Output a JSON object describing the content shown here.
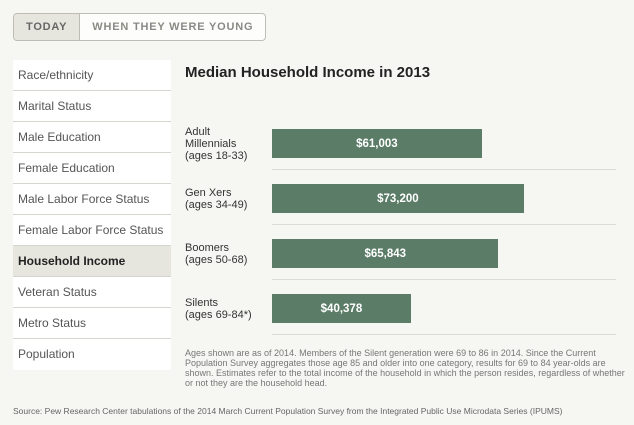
{
  "tabs": [
    {
      "label": "TODAY"
    },
    {
      "label": "WHEN THEY WERE YOUNG"
    }
  ],
  "sidebar": {
    "items": [
      {
        "label": "Race/ethnicity"
      },
      {
        "label": "Marital Status"
      },
      {
        "label": "Male Education"
      },
      {
        "label": "Female Education"
      },
      {
        "label": "Male Labor Force Status"
      },
      {
        "label": "Female Labor Force Status"
      },
      {
        "label": "Household Income"
      },
      {
        "label": "Veteran Status"
      },
      {
        "label": "Metro Status"
      },
      {
        "label": "Population"
      }
    ],
    "active_index": 6
  },
  "chart_data": {
    "type": "bar",
    "orientation": "horizontal",
    "title": "Median Household Income in 2013",
    "categories": [
      "Adult Millennials (ages 18-33)",
      "Gen Xers (ages 34-49)",
      "Boomers (ages 50-68)",
      "Silents (ages 69-84*)"
    ],
    "category_lines": [
      [
        "Adult",
        "Millennials",
        "(ages 18-33)"
      ],
      [
        "Gen Xers",
        "(ages 34-49)"
      ],
      [
        "Boomers",
        "(ages 50-68)"
      ],
      [
        "Silents",
        "(ages 69-84*)"
      ]
    ],
    "values": [
      61003,
      73200,
      65843,
      40378
    ],
    "value_labels": [
      "$61,003",
      "$73,200",
      "$65,843",
      "$40,378"
    ],
    "xlim": [
      0,
      100000
    ],
    "bar_color": "#5b7d68",
    "grid": false,
    "legend": "none"
  },
  "note": "Ages shown are as of 2014. Members of the Silent generation were 69 to 86 in 2014. Since the Current Population Survey aggregates those age 85 and older into one category, results for 69 to 84 year-olds are shown. Estimates refer to the total income of the household in which the person resides, regardless of whether or not they are the household head.",
  "source": "Source: Pew Research Center tabulations of the 2014 March Current Population Survey from the Integrated Public Use Microdata Series (IPUMS)"
}
